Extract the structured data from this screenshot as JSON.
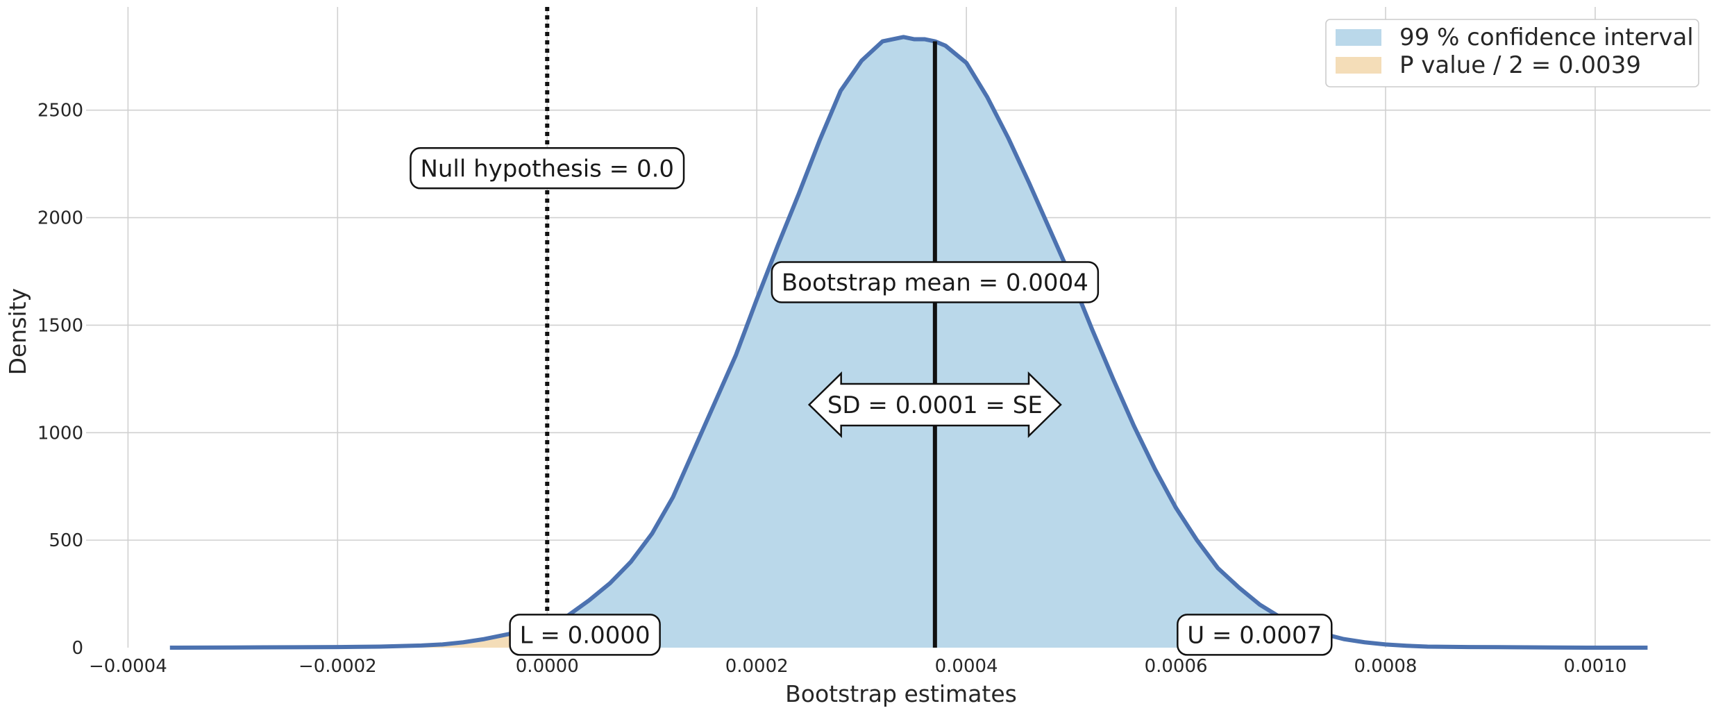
{
  "chart_data": {
    "type": "area",
    "xlabel": "Bootstrap estimates",
    "ylabel": "Density",
    "xlim": [
      -0.00044,
      0.00111
    ],
    "ylim": [
      0,
      2980
    ],
    "x_ticks": [
      -0.0004,
      -0.0002,
      0.0,
      0.0002,
      0.0004,
      0.0006,
      0.0008,
      0.001
    ],
    "x_tick_labels": [
      "−0.0004",
      "−0.0002",
      "0.0000",
      "0.0002",
      "0.0004",
      "0.0006",
      "0.0008",
      "0.0010"
    ],
    "y_ticks": [
      0,
      500,
      1000,
      1500,
      2000,
      2500
    ],
    "y_tick_labels": [
      "0",
      "500",
      "1000",
      "1500",
      "2000",
      "2500"
    ],
    "grid": true,
    "legend_position": "top-right",
    "colors": {
      "curve": "#4c72b0",
      "ci_fill": "#bad8ea",
      "p_fill": "#f4ddb8",
      "lines": "#111111"
    },
    "density_curve": {
      "x": [
        -0.00036,
        -0.0003,
        -0.00024,
        -0.0002,
        -0.00016,
        -0.00012,
        -0.0001,
        -8e-05,
        -6e-05,
        -4e-05,
        -2e-05,
        0.0,
        2e-05,
        4e-05,
        6e-05,
        8e-05,
        0.0001,
        0.00012,
        0.00014,
        0.00016,
        0.00018,
        0.0002,
        0.00022,
        0.00024,
        0.00026,
        0.00028,
        0.0003,
        0.00032,
        0.00034,
        0.00035,
        0.00036,
        0.00037,
        0.00038,
        0.0004,
        0.00042,
        0.00044,
        0.00046,
        0.00048,
        0.0005,
        0.00052,
        0.00054,
        0.00056,
        0.00058,
        0.0006,
        0.00062,
        0.00064,
        0.00066,
        0.00068,
        0.0007,
        0.00072,
        0.00074,
        0.00076,
        0.00078,
        0.0008,
        0.00082,
        0.00084,
        0.00088,
        0.00092,
        0.00096,
        0.001,
        0.00105
      ],
      "y": [
        0,
        1,
        2,
        3,
        5,
        10,
        15,
        25,
        40,
        60,
        80,
        100,
        150,
        220,
        300,
        400,
        530,
        700,
        920,
        1140,
        1360,
        1620,
        1870,
        2110,
        2360,
        2590,
        2730,
        2820,
        2840,
        2830,
        2830,
        2820,
        2800,
        2720,
        2560,
        2370,
        2160,
        1940,
        1720,
        1480,
        1250,
        1030,
        830,
        650,
        500,
        370,
        280,
        200,
        140,
        100,
        65,
        40,
        25,
        15,
        9,
        5,
        3,
        2,
        1,
        0,
        0
      ]
    },
    "ci_interval": [
      0.0,
      0.00074
    ],
    "p_tail_interval": [
      -0.00036,
      0.0
    ],
    "null_hypothesis_x": 0.0,
    "bootstrap_mean_x": 0.00037,
    "legend": [
      {
        "label": "99 % confidence interval",
        "color": "#bad8ea"
      },
      {
        "label": "P value / 2 = 0.0039",
        "color": "#f4ddb8"
      }
    ],
    "annotations": {
      "null_hypothesis": {
        "text": "Null hypothesis = 0.0",
        "x": 0.0,
        "y": 2230
      },
      "bootstrap_mean": {
        "text": "Bootstrap mean = 0.0004",
        "x": 0.00037,
        "y": 1700
      },
      "sd": {
        "text": "SD = 0.0001 = SE",
        "x": 0.00037,
        "y": 1130,
        "span": [
          0.00025,
          0.00049
        ]
      },
      "lower": {
        "text": "L = 0.0000",
        "x": 3.6e-05,
        "y": 60
      },
      "upper": {
        "text": "U = 0.0007",
        "x": 0.000675,
        "y": 60
      }
    }
  }
}
